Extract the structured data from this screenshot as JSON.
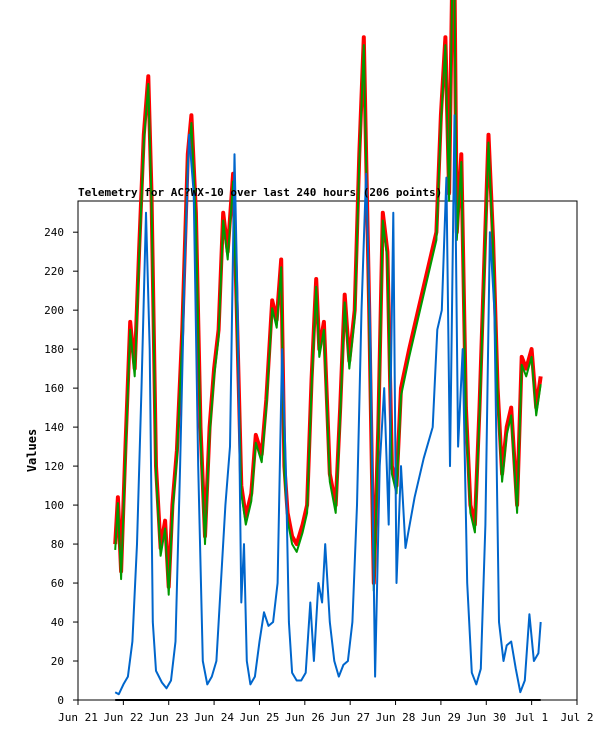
{
  "chart_data": {
    "type": "line",
    "title": "Telemetry for AC?WX-10 over last 240 hours (206 points)",
    "xlabel": "",
    "ylabel": "Values",
    "ylim": [
      0,
      256
    ],
    "xlim": [
      0,
      11
    ],
    "grid": false,
    "legend": "none",
    "y_ticks": [
      0,
      20,
      40,
      60,
      80,
      100,
      120,
      140,
      160,
      180,
      200,
      220,
      240
    ],
    "x_ticks": [
      {
        "x": 0,
        "label": "Jun 21"
      },
      {
        "x": 1,
        "label": "Jun 22"
      },
      {
        "x": 2,
        "label": "Jun 23"
      },
      {
        "x": 3,
        "label": "Jun 24"
      },
      {
        "x": 4,
        "label": "Jun 25"
      },
      {
        "x": 5,
        "label": "Jun 26"
      },
      {
        "x": 6,
        "label": "Jun 27"
      },
      {
        "x": 7,
        "label": "Jun 28"
      },
      {
        "x": 8,
        "label": "Jun 29"
      },
      {
        "x": 9,
        "label": "Jun 30"
      },
      {
        "x": 10,
        "label": "Jul 1"
      },
      {
        "x": 11,
        "label": "Jul 2"
      }
    ],
    "series": [
      {
        "color": "#ff0000",
        "width": 4,
        "points": [
          [
            0.82,
            80
          ],
          [
            0.88,
            104
          ],
          [
            0.95,
            66
          ],
          [
            1.05,
            132
          ],
          [
            1.15,
            194
          ],
          [
            1.25,
            170
          ],
          [
            1.35,
            232
          ],
          [
            1.45,
            290
          ],
          [
            1.55,
            320
          ],
          [
            1.62,
            260
          ],
          [
            1.72,
            120
          ],
          [
            1.82,
            78
          ],
          [
            1.92,
            92
          ],
          [
            2.0,
            58
          ],
          [
            2.08,
            100
          ],
          [
            2.18,
            128
          ],
          [
            2.3,
            190
          ],
          [
            2.42,
            280
          ],
          [
            2.5,
            300
          ],
          [
            2.6,
            250
          ],
          [
            2.7,
            140
          ],
          [
            2.8,
            84
          ],
          [
            2.9,
            140
          ],
          [
            3.0,
            170
          ],
          [
            3.1,
            190
          ],
          [
            3.2,
            250
          ],
          [
            3.3,
            230
          ],
          [
            3.42,
            270
          ],
          [
            3.5,
            200
          ],
          [
            3.6,
            110
          ],
          [
            3.7,
            94
          ],
          [
            3.82,
            106
          ],
          [
            3.92,
            136
          ],
          [
            4.05,
            126
          ],
          [
            4.15,
            154
          ],
          [
            4.28,
            205
          ],
          [
            4.38,
            195
          ],
          [
            4.48,
            226
          ],
          [
            4.55,
            120
          ],
          [
            4.62,
            96
          ],
          [
            4.72,
            84
          ],
          [
            4.82,
            80
          ],
          [
            4.95,
            90
          ],
          [
            5.05,
            100
          ],
          [
            5.15,
            165
          ],
          [
            5.25,
            216
          ],
          [
            5.32,
            180
          ],
          [
            5.42,
            194
          ],
          [
            5.55,
            116
          ],
          [
            5.68,
            100
          ],
          [
            5.78,
            150
          ],
          [
            5.88,
            208
          ],
          [
            5.98,
            174
          ],
          [
            6.1,
            200
          ],
          [
            6.2,
            280
          ],
          [
            6.3,
            340
          ],
          [
            6.42,
            200
          ],
          [
            6.52,
            60
          ],
          [
            6.62,
            140
          ],
          [
            6.72,
            250
          ],
          [
            6.82,
            230
          ],
          [
            6.92,
            120
          ],
          [
            7.02,
            110
          ],
          [
            7.12,
            160
          ],
          [
            7.3,
            180
          ],
          [
            7.5,
            200
          ],
          [
            7.7,
            220
          ],
          [
            7.9,
            240
          ],
          [
            8.0,
            300
          ],
          [
            8.1,
            340
          ],
          [
            8.18,
            260
          ],
          [
            8.28,
            420
          ],
          [
            8.35,
            240
          ],
          [
            8.45,
            280
          ],
          [
            8.55,
            150
          ],
          [
            8.65,
            100
          ],
          [
            8.75,
            90
          ],
          [
            8.85,
            150
          ],
          [
            8.95,
            220
          ],
          [
            9.05,
            290
          ],
          [
            9.15,
            236
          ],
          [
            9.25,
            160
          ],
          [
            9.35,
            116
          ],
          [
            9.45,
            140
          ],
          [
            9.55,
            150
          ],
          [
            9.68,
            100
          ],
          [
            9.78,
            176
          ],
          [
            9.88,
            170
          ],
          [
            10.0,
            180
          ],
          [
            10.1,
            150
          ],
          [
            10.2,
            166
          ]
        ]
      },
      {
        "color": "#009900",
        "width": 2,
        "points": [
          [
            0.82,
            77
          ],
          [
            0.88,
            101
          ],
          [
            0.95,
            62
          ],
          [
            1.05,
            128
          ],
          [
            1.15,
            190
          ],
          [
            1.25,
            166
          ],
          [
            1.35,
            228
          ],
          [
            1.45,
            286
          ],
          [
            1.55,
            316
          ],
          [
            1.62,
            256
          ],
          [
            1.72,
            116
          ],
          [
            1.82,
            74
          ],
          [
            1.92,
            88
          ],
          [
            2.0,
            54
          ],
          [
            2.08,
            96
          ],
          [
            2.18,
            124
          ],
          [
            2.3,
            186
          ],
          [
            2.42,
            276
          ],
          [
            2.5,
            296
          ],
          [
            2.6,
            246
          ],
          [
            2.7,
            136
          ],
          [
            2.8,
            80
          ],
          [
            2.9,
            136
          ],
          [
            3.0,
            166
          ],
          [
            3.1,
            186
          ],
          [
            3.2,
            246
          ],
          [
            3.3,
            226
          ],
          [
            3.42,
            266
          ],
          [
            3.5,
            196
          ],
          [
            3.6,
            106
          ],
          [
            3.7,
            90
          ],
          [
            3.82,
            102
          ],
          [
            3.92,
            132
          ],
          [
            4.05,
            122
          ],
          [
            4.15,
            150
          ],
          [
            4.28,
            201
          ],
          [
            4.38,
            191
          ],
          [
            4.48,
            222
          ],
          [
            4.55,
            116
          ],
          [
            4.62,
            92
          ],
          [
            4.72,
            80
          ],
          [
            4.82,
            76
          ],
          [
            4.95,
            86
          ],
          [
            5.05,
            96
          ],
          [
            5.15,
            161
          ],
          [
            5.25,
            212
          ],
          [
            5.32,
            176
          ],
          [
            5.42,
            190
          ],
          [
            5.55,
            112
          ],
          [
            5.68,
            96
          ],
          [
            5.78,
            146
          ],
          [
            5.88,
            204
          ],
          [
            5.98,
            170
          ],
          [
            6.1,
            196
          ],
          [
            6.2,
            276
          ],
          [
            6.3,
            336
          ],
          [
            6.42,
            196
          ],
          [
            6.52,
            56
          ],
          [
            6.62,
            136
          ],
          [
            6.72,
            246
          ],
          [
            6.82,
            226
          ],
          [
            6.92,
            116
          ],
          [
            7.02,
            106
          ],
          [
            7.12,
            156
          ],
          [
            7.3,
            176
          ],
          [
            7.5,
            196
          ],
          [
            7.7,
            216
          ],
          [
            7.9,
            236
          ],
          [
            8.0,
            296
          ],
          [
            8.1,
            336
          ],
          [
            8.18,
            256
          ],
          [
            8.28,
            416
          ],
          [
            8.35,
            236
          ],
          [
            8.45,
            276
          ],
          [
            8.55,
            146
          ],
          [
            8.65,
            96
          ],
          [
            8.75,
            86
          ],
          [
            8.85,
            146
          ],
          [
            8.95,
            216
          ],
          [
            9.05,
            286
          ],
          [
            9.15,
            232
          ],
          [
            9.25,
            156
          ],
          [
            9.35,
            112
          ],
          [
            9.45,
            136
          ],
          [
            9.55,
            146
          ],
          [
            9.68,
            96
          ],
          [
            9.78,
            172
          ],
          [
            9.88,
            166
          ],
          [
            10.0,
            176
          ],
          [
            10.1,
            146
          ],
          [
            10.2,
            162
          ]
        ]
      },
      {
        "color": "#0066cc",
        "width": 2,
        "points": [
          [
            0.82,
            4
          ],
          [
            0.9,
            3
          ],
          [
            1.0,
            8
          ],
          [
            1.1,
            12
          ],
          [
            1.2,
            30
          ],
          [
            1.3,
            80
          ],
          [
            1.4,
            160
          ],
          [
            1.5,
            250
          ],
          [
            1.58,
            180
          ],
          [
            1.65,
            40
          ],
          [
            1.72,
            15
          ],
          [
            1.85,
            9
          ],
          [
            1.95,
            6
          ],
          [
            2.05,
            10
          ],
          [
            2.15,
            30
          ],
          [
            2.25,
            120
          ],
          [
            2.35,
            220
          ],
          [
            2.45,
            290
          ],
          [
            2.55,
            260
          ],
          [
            2.65,
            120
          ],
          [
            2.75,
            20
          ],
          [
            2.85,
            8
          ],
          [
            2.95,
            12
          ],
          [
            3.05,
            20
          ],
          [
            3.15,
            60
          ],
          [
            3.25,
            100
          ],
          [
            3.35,
            130
          ],
          [
            3.45,
            280
          ],
          [
            3.52,
            200
          ],
          [
            3.6,
            50
          ],
          [
            3.66,
            80
          ],
          [
            3.72,
            20
          ],
          [
            3.8,
            8
          ],
          [
            3.9,
            12
          ],
          [
            4.0,
            30
          ],
          [
            4.1,
            45
          ],
          [
            4.2,
            38
          ],
          [
            4.3,
            40
          ],
          [
            4.4,
            60
          ],
          [
            4.5,
            180
          ],
          [
            4.58,
            120
          ],
          [
            4.65,
            40
          ],
          [
            4.72,
            14
          ],
          [
            4.82,
            10
          ],
          [
            4.92,
            10
          ],
          [
            5.02,
            14
          ],
          [
            5.12,
            50
          ],
          [
            5.2,
            20
          ],
          [
            5.3,
            60
          ],
          [
            5.38,
            50
          ],
          [
            5.45,
            80
          ],
          [
            5.55,
            40
          ],
          [
            5.65,
            20
          ],
          [
            5.75,
            12
          ],
          [
            5.85,
            18
          ],
          [
            5.95,
            20
          ],
          [
            6.05,
            40
          ],
          [
            6.15,
            100
          ],
          [
            6.25,
            200
          ],
          [
            6.35,
            270
          ],
          [
            6.45,
            180
          ],
          [
            6.55,
            12
          ],
          [
            6.65,
            120
          ],
          [
            6.75,
            160
          ],
          [
            6.85,
            90
          ],
          [
            6.95,
            250
          ],
          [
            7.02,
            60
          ],
          [
            7.12,
            120
          ],
          [
            7.22,
            78
          ],
          [
            7.42,
            104
          ],
          [
            7.62,
            124
          ],
          [
            7.82,
            140
          ],
          [
            7.92,
            190
          ],
          [
            8.02,
            200
          ],
          [
            8.12,
            268
          ],
          [
            8.2,
            120
          ],
          [
            8.3,
            300
          ],
          [
            8.38,
            130
          ],
          [
            8.48,
            180
          ],
          [
            8.58,
            60
          ],
          [
            8.68,
            14
          ],
          [
            8.78,
            8
          ],
          [
            8.88,
            16
          ],
          [
            8.98,
            90
          ],
          [
            9.08,
            240
          ],
          [
            9.18,
            200
          ],
          [
            9.28,
            40
          ],
          [
            9.38,
            20
          ],
          [
            9.45,
            28
          ],
          [
            9.55,
            30
          ],
          [
            9.65,
            16
          ],
          [
            9.75,
            4
          ],
          [
            9.85,
            10
          ],
          [
            9.95,
            44
          ],
          [
            10.05,
            20
          ],
          [
            10.15,
            24
          ],
          [
            10.2,
            40
          ]
        ]
      },
      {
        "color": "#000000",
        "width": 2,
        "points": [
          [
            0.82,
            0
          ],
          [
            10.2,
            0
          ]
        ]
      }
    ]
  }
}
